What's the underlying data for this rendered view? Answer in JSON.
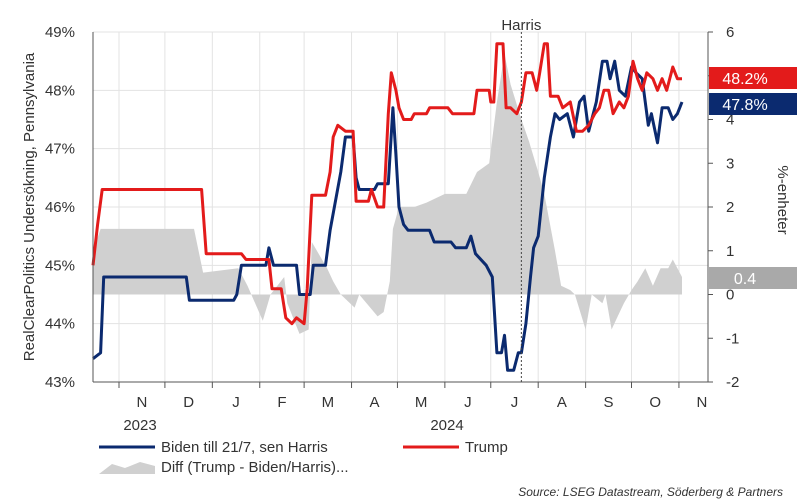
{
  "chart_data": {
    "type": "line",
    "left_axis_label": "RealClearPolitics Undersökning, Pennsylvania",
    "right_axis_label": "%-enheter",
    "left_ticks": [
      "43%",
      "44%",
      "45%",
      "46%",
      "47%",
      "48%",
      "49%"
    ],
    "left_ylim": [
      43,
      49
    ],
    "right_ticks": [
      "-2",
      "-1",
      "0",
      "1",
      "2",
      "3",
      "4",
      "5",
      "6"
    ],
    "right_ylim": [
      -2,
      6
    ],
    "x_months": [
      "N",
      "D",
      "J",
      "F",
      "M",
      "A",
      "M",
      "J",
      "J",
      "A",
      "S",
      "O",
      "N"
    ],
    "x_years": [
      "2023",
      "2024"
    ],
    "event_label": "Harris",
    "event_date": "2024-07-21",
    "x_range": [
      "2023-10-15",
      "2024-11-20"
    ],
    "series": [
      {
        "name": "Biden till 21/7, sen Harris",
        "color": "#0b2a6f",
        "axis": "left",
        "end_label": "47.8%",
        "points": [
          [
            "2023-10-15",
            43.4
          ],
          [
            "2023-10-20",
            43.5
          ],
          [
            "2023-10-22",
            44.8
          ],
          [
            "2023-12-15",
            44.8
          ],
          [
            "2023-12-17",
            44.4
          ],
          [
            "2024-01-15",
            44.4
          ],
          [
            "2024-01-17",
            44.5
          ],
          [
            "2024-01-20",
            45.0
          ],
          [
            "2024-02-05",
            45.0
          ],
          [
            "2024-02-07",
            45.3
          ],
          [
            "2024-02-10",
            45.0
          ],
          [
            "2024-02-25",
            45.0
          ],
          [
            "2024-02-27",
            44.5
          ],
          [
            "2024-03-05",
            44.5
          ],
          [
            "2024-03-07",
            45.0
          ],
          [
            "2024-03-15",
            45.0
          ],
          [
            "2024-03-18",
            45.6
          ],
          [
            "2024-03-25",
            46.6
          ],
          [
            "2024-03-28",
            47.2
          ],
          [
            "2024-04-02",
            47.2
          ],
          [
            "2024-04-04",
            46.5
          ],
          [
            "2024-04-06",
            46.3
          ],
          [
            "2024-04-16",
            46.3
          ],
          [
            "2024-04-18",
            46.4
          ],
          [
            "2024-04-25",
            46.4
          ],
          [
            "2024-04-28",
            47.7
          ],
          [
            "2024-04-30",
            46.9
          ],
          [
            "2024-05-02",
            46.0
          ],
          [
            "2024-05-05",
            45.7
          ],
          [
            "2024-05-08",
            45.6
          ],
          [
            "2024-05-22",
            45.6
          ],
          [
            "2024-05-25",
            45.4
          ],
          [
            "2024-06-05",
            45.4
          ],
          [
            "2024-06-08",
            45.3
          ],
          [
            "2024-06-15",
            45.3
          ],
          [
            "2024-06-18",
            45.5
          ],
          [
            "2024-06-21",
            45.2
          ],
          [
            "2024-06-28",
            45.0
          ],
          [
            "2024-07-02",
            44.8
          ],
          [
            "2024-07-05",
            43.5
          ],
          [
            "2024-07-08",
            43.5
          ],
          [
            "2024-07-10",
            43.8
          ],
          [
            "2024-07-12",
            43.2
          ],
          [
            "2024-07-16",
            43.2
          ],
          [
            "2024-07-19",
            43.5
          ],
          [
            "2024-07-21",
            43.5
          ],
          [
            "2024-07-24",
            44.0
          ],
          [
            "2024-07-27",
            44.8
          ],
          [
            "2024-07-29",
            45.3
          ],
          [
            "2024-08-01",
            45.5
          ],
          [
            "2024-08-05",
            46.5
          ],
          [
            "2024-08-09",
            47.2
          ],
          [
            "2024-08-12",
            47.6
          ],
          [
            "2024-08-15",
            47.5
          ],
          [
            "2024-08-20",
            47.6
          ],
          [
            "2024-08-24",
            47.2
          ],
          [
            "2024-08-28",
            47.8
          ],
          [
            "2024-08-31",
            47.9
          ],
          [
            "2024-09-03",
            47.3
          ],
          [
            "2024-09-08",
            47.8
          ],
          [
            "2024-09-12",
            48.5
          ],
          [
            "2024-09-15",
            48.5
          ],
          [
            "2024-09-17",
            48.2
          ],
          [
            "2024-09-20",
            48.5
          ],
          [
            "2024-09-23",
            48.0
          ],
          [
            "2024-09-27",
            47.9
          ],
          [
            "2024-10-01",
            48.4
          ],
          [
            "2024-10-04",
            48.3
          ],
          [
            "2024-10-08",
            48.2
          ],
          [
            "2024-10-12",
            47.4
          ],
          [
            "2024-10-14",
            47.6
          ],
          [
            "2024-10-18",
            47.1
          ],
          [
            "2024-10-21",
            47.7
          ],
          [
            "2024-10-25",
            47.7
          ],
          [
            "2024-10-28",
            47.5
          ],
          [
            "2024-10-31",
            47.6
          ],
          [
            "2024-11-03",
            47.8
          ]
        ]
      },
      {
        "name": "Trump",
        "color": "#e31b1b",
        "axis": "left",
        "end_label": "48.2%",
        "points": [
          [
            "2023-10-15",
            45.0
          ],
          [
            "2023-10-18",
            45.7
          ],
          [
            "2023-10-21",
            46.3
          ],
          [
            "2023-12-25",
            46.3
          ],
          [
            "2023-12-28",
            45.2
          ],
          [
            "2024-01-20",
            45.2
          ],
          [
            "2024-01-23",
            45.1
          ],
          [
            "2024-02-07",
            45.1
          ],
          [
            "2024-02-09",
            44.6
          ],
          [
            "2024-02-15",
            44.6
          ],
          [
            "2024-02-18",
            44.1
          ],
          [
            "2024-02-22",
            44.0
          ],
          [
            "2024-02-25",
            44.1
          ],
          [
            "2024-03-01",
            44.0
          ],
          [
            "2024-03-03",
            44.6
          ],
          [
            "2024-03-06",
            46.2
          ],
          [
            "2024-03-15",
            46.2
          ],
          [
            "2024-03-18",
            46.6
          ],
          [
            "2024-03-20",
            47.2
          ],
          [
            "2024-03-23",
            47.4
          ],
          [
            "2024-03-28",
            47.3
          ],
          [
            "2024-04-02",
            47.3
          ],
          [
            "2024-04-04",
            46.1
          ],
          [
            "2024-04-12",
            46.1
          ],
          [
            "2024-04-14",
            46.3
          ],
          [
            "2024-04-18",
            46.0
          ],
          [
            "2024-04-22",
            46.0
          ],
          [
            "2024-04-25",
            47.6
          ],
          [
            "2024-04-27",
            48.3
          ],
          [
            "2024-04-30",
            48.0
          ],
          [
            "2024-05-02",
            47.7
          ],
          [
            "2024-05-05",
            47.5
          ],
          [
            "2024-05-10",
            47.5
          ],
          [
            "2024-05-12",
            47.6
          ],
          [
            "2024-05-20",
            47.6
          ],
          [
            "2024-05-22",
            47.7
          ],
          [
            "2024-06-03",
            47.7
          ],
          [
            "2024-06-06",
            47.6
          ],
          [
            "2024-06-20",
            47.6
          ],
          [
            "2024-06-22",
            48.0
          ],
          [
            "2024-06-30",
            48.0
          ],
          [
            "2024-07-01",
            47.8
          ],
          [
            "2024-07-03",
            47.8
          ],
          [
            "2024-07-05",
            48.8
          ],
          [
            "2024-07-09",
            48.8
          ],
          [
            "2024-07-11",
            47.7
          ],
          [
            "2024-07-14",
            47.7
          ],
          [
            "2024-07-18",
            47.6
          ],
          [
            "2024-07-21",
            47.8
          ],
          [
            "2024-07-24",
            48.3
          ],
          [
            "2024-07-28",
            48.3
          ],
          [
            "2024-07-31",
            48.0
          ],
          [
            "2024-08-02",
            48.3
          ],
          [
            "2024-08-05",
            48.8
          ],
          [
            "2024-08-07",
            48.8
          ],
          [
            "2024-08-09",
            47.9
          ],
          [
            "2024-08-14",
            47.9
          ],
          [
            "2024-08-17",
            47.7
          ],
          [
            "2024-08-22",
            47.8
          ],
          [
            "2024-08-26",
            47.3
          ],
          [
            "2024-08-30",
            47.3
          ],
          [
            "2024-09-03",
            47.4
          ],
          [
            "2024-09-07",
            47.6
          ],
          [
            "2024-09-10",
            47.7
          ],
          [
            "2024-09-13",
            48.0
          ],
          [
            "2024-09-16",
            48.0
          ],
          [
            "2024-09-19",
            47.6
          ],
          [
            "2024-09-23",
            47.8
          ],
          [
            "2024-09-26",
            47.7
          ],
          [
            "2024-09-29",
            47.9
          ],
          [
            "2024-10-02",
            48.5
          ],
          [
            "2024-10-05",
            48.2
          ],
          [
            "2024-10-08",
            48.0
          ],
          [
            "2024-10-11",
            48.3
          ],
          [
            "2024-10-15",
            48.2
          ],
          [
            "2024-10-18",
            48.0
          ],
          [
            "2024-10-21",
            48.2
          ],
          [
            "2024-10-24",
            48.0
          ],
          [
            "2024-10-28",
            48.4
          ],
          [
            "2024-10-31",
            48.2
          ],
          [
            "2024-11-03",
            48.2
          ]
        ]
      },
      {
        "name": "Diff (Trump - Biden/Harris)...",
        "color": "#d0d0d0",
        "axis": "right",
        "type": "area",
        "end_label": "0.4",
        "points": [
          [
            "2023-10-15",
            1.0
          ],
          [
            "2023-10-20",
            1.5
          ],
          [
            "2023-11-20",
            1.5
          ],
          [
            "2023-12-20",
            1.5
          ],
          [
            "2023-12-26",
            0.5
          ],
          [
            "2024-01-18",
            0.6
          ],
          [
            "2024-01-24",
            0.2
          ],
          [
            "2024-02-03",
            -0.6
          ],
          [
            "2024-02-08",
            0.0
          ],
          [
            "2024-02-17",
            0.4
          ],
          [
            "2024-02-19",
            -0.2
          ],
          [
            "2024-02-27",
            -0.9
          ],
          [
            "2024-03-04",
            -0.8
          ],
          [
            "2024-03-06",
            1.2
          ],
          [
            "2024-03-16",
            0.6
          ],
          [
            "2024-03-20",
            0.3
          ],
          [
            "2024-03-25",
            0.0
          ],
          [
            "2024-04-03",
            -0.3
          ],
          [
            "2024-04-06",
            0.0
          ],
          [
            "2024-04-18",
            -0.5
          ],
          [
            "2024-04-22",
            -0.4
          ],
          [
            "2024-04-26",
            0.3
          ],
          [
            "2024-04-28",
            1.5
          ],
          [
            "2024-05-02",
            2.0
          ],
          [
            "2024-05-12",
            2.0
          ],
          [
            "2024-05-20",
            2.1
          ],
          [
            "2024-06-01",
            2.3
          ],
          [
            "2024-06-15",
            2.3
          ],
          [
            "2024-06-22",
            2.8
          ],
          [
            "2024-06-30",
            3.0
          ],
          [
            "2024-07-05",
            4.4
          ],
          [
            "2024-07-10",
            5.5
          ],
          [
            "2024-07-14",
            4.8
          ],
          [
            "2024-07-21",
            4.0
          ],
          [
            "2024-07-26",
            3.5
          ],
          [
            "2024-08-01",
            2.8
          ],
          [
            "2024-08-05",
            2.3
          ],
          [
            "2024-08-12",
            1.0
          ],
          [
            "2024-08-16",
            0.2
          ],
          [
            "2024-08-22",
            0.1
          ],
          [
            "2024-08-25",
            0.0
          ],
          [
            "2024-09-01",
            -0.8
          ],
          [
            "2024-09-05",
            0.0
          ],
          [
            "2024-09-12",
            -0.2
          ],
          [
            "2024-09-14",
            0.0
          ],
          [
            "2024-09-18",
            -0.8
          ],
          [
            "2024-09-22",
            -0.5
          ],
          [
            "2024-09-26",
            -0.2
          ],
          [
            "2024-10-01",
            0.1
          ],
          [
            "2024-10-05",
            0.3
          ],
          [
            "2024-10-10",
            0.6
          ],
          [
            "2024-10-15",
            0.2
          ],
          [
            "2024-10-20",
            0.6
          ],
          [
            "2024-10-25",
            0.6
          ],
          [
            "2024-10-28",
            0.8
          ],
          [
            "2024-11-03",
            0.4
          ]
        ]
      }
    ],
    "source": "Source: LSEG Datastream, Söderberg & Partners"
  }
}
